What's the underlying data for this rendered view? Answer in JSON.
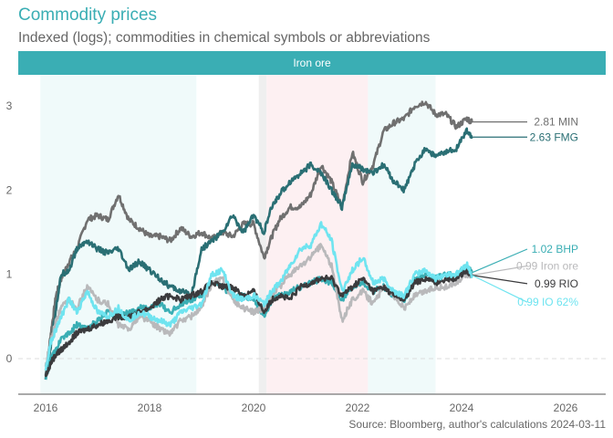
{
  "header": {
    "title": "Commodity prices",
    "subtitle": "Indexed (logs); commodities in chemical symbols or abbreviations",
    "facet_label": "Iron ore"
  },
  "footer": {
    "source": "Source: Bloomberg, author's calculations 2024-03-11"
  },
  "chart_data": {
    "type": "line",
    "title": "Commodity prices",
    "subtitle": "Indexed (logs); commodities in chemical symbols or abbreviations",
    "facet": "Iron ore",
    "xlabel": "",
    "ylabel": "",
    "xlim": [
      2015.5,
      2026.8
    ],
    "ylim": [
      -0.42,
      3.35
    ],
    "x_ticks": [
      2016,
      2018,
      2020,
      2022,
      2024,
      2026
    ],
    "x_tick_labels": [
      "2016",
      "2018",
      "2020",
      "2022",
      "2024",
      "2026"
    ],
    "y_ticks": [
      0,
      1,
      2,
      3
    ],
    "y_tick_labels": [
      "0",
      "1",
      "2",
      "3"
    ],
    "reference_line": {
      "y": 0,
      "style": "dashed"
    },
    "shaded_periods": [
      {
        "start": 2015.9,
        "end": 2018.9,
        "color": "#f0fafa"
      },
      {
        "start": 2020.1,
        "end": 2020.25,
        "color": "#efefef"
      },
      {
        "start": 2020.25,
        "end": 2022.2,
        "color": "#fdf0f2"
      },
      {
        "start": 2022.2,
        "end": 2023.5,
        "color": "#f0fafa"
      }
    ],
    "series": [
      {
        "name": "MIN",
        "color": "#707070",
        "end_value": 2.81,
        "end_label": "2.81 MIN",
        "label_y": 2.81,
        "x": [
          2016.0,
          2016.1,
          2016.2,
          2016.3,
          2016.45,
          2016.6,
          2016.8,
          2017.0,
          2017.2,
          2017.4,
          2017.6,
          2017.8,
          2018.0,
          2018.2,
          2018.4,
          2018.6,
          2018.8,
          2019.0,
          2019.2,
          2019.4,
          2019.6,
          2019.8,
          2020.0,
          2020.2,
          2020.35,
          2020.5,
          2020.7,
          2020.9,
          2021.1,
          2021.3,
          2021.5,
          2021.7,
          2021.9,
          2022.1,
          2022.3,
          2022.5,
          2022.7,
          2022.9,
          2023.1,
          2023.3,
          2023.5,
          2023.7,
          2023.9,
          2024.1,
          2024.2
        ],
        "y": [
          -0.2,
          0.3,
          0.75,
          0.95,
          1.15,
          1.3,
          1.65,
          1.7,
          1.65,
          1.95,
          1.65,
          1.55,
          1.45,
          1.45,
          1.4,
          1.55,
          1.45,
          1.5,
          1.42,
          1.5,
          1.45,
          1.6,
          1.6,
          1.2,
          1.45,
          1.65,
          1.8,
          1.8,
          1.95,
          2.3,
          2.1,
          1.8,
          2.45,
          2.1,
          2.3,
          2.7,
          2.8,
          2.85,
          3.0,
          3.05,
          2.9,
          2.9,
          2.75,
          2.85,
          2.81
        ]
      },
      {
        "name": "FMG",
        "color": "#2a6f74",
        "end_value": 2.63,
        "end_label": "2.63 FMG",
        "label_y": 2.63,
        "x": [
          2016.0,
          2016.1,
          2016.2,
          2016.3,
          2016.45,
          2016.6,
          2016.8,
          2017.0,
          2017.2,
          2017.4,
          2017.6,
          2017.8,
          2018.0,
          2018.2,
          2018.4,
          2018.6,
          2018.8,
          2019.0,
          2019.2,
          2019.4,
          2019.6,
          2019.8,
          2020.0,
          2020.2,
          2020.35,
          2020.5,
          2020.7,
          2020.9,
          2021.1,
          2021.3,
          2021.5,
          2021.7,
          2021.9,
          2022.1,
          2022.3,
          2022.5,
          2022.7,
          2022.9,
          2023.1,
          2023.3,
          2023.5,
          2023.7,
          2023.9,
          2024.1,
          2024.2
        ],
        "y": [
          -0.25,
          0.15,
          0.6,
          1.0,
          1.05,
          1.3,
          1.4,
          1.3,
          1.25,
          1.3,
          1.05,
          1.15,
          1.05,
          0.95,
          0.85,
          0.8,
          0.75,
          1.3,
          1.4,
          1.5,
          1.7,
          1.5,
          1.7,
          1.5,
          1.8,
          1.95,
          2.1,
          2.2,
          2.3,
          2.2,
          2.0,
          1.8,
          2.3,
          2.25,
          2.2,
          2.3,
          2.1,
          2.0,
          2.3,
          2.5,
          2.4,
          2.45,
          2.5,
          2.7,
          2.63
        ]
      },
      {
        "name": "BHP",
        "color": "#3aaeb4",
        "end_value": 1.02,
        "end_label": "1.02 BHP",
        "label_y": 1.3,
        "x": [
          2016.0,
          2016.1,
          2016.2,
          2016.3,
          2016.45,
          2016.6,
          2016.8,
          2017.0,
          2017.2,
          2017.4,
          2017.6,
          2017.8,
          2018.0,
          2018.2,
          2018.4,
          2018.6,
          2018.8,
          2019.0,
          2019.2,
          2019.4,
          2019.6,
          2019.8,
          2020.0,
          2020.2,
          2020.35,
          2020.5,
          2020.7,
          2020.9,
          2021.1,
          2021.3,
          2021.5,
          2021.7,
          2021.9,
          2022.1,
          2022.3,
          2022.5,
          2022.7,
          2022.9,
          2023.1,
          2023.3,
          2023.5,
          2023.7,
          2023.9,
          2024.1,
          2024.2
        ],
        "y": [
          -0.25,
          0.0,
          0.1,
          0.25,
          0.3,
          0.4,
          0.35,
          0.45,
          0.55,
          0.5,
          0.55,
          0.6,
          0.6,
          0.65,
          0.55,
          0.65,
          0.7,
          0.75,
          0.9,
          0.85,
          0.75,
          0.75,
          0.7,
          0.5,
          0.7,
          0.75,
          0.8,
          0.85,
          0.9,
          0.95,
          0.9,
          0.7,
          0.85,
          0.9,
          0.8,
          0.85,
          0.75,
          0.7,
          0.95,
          1.0,
          0.95,
          1.0,
          1.0,
          1.1,
          1.02
        ]
      },
      {
        "name": "Iron ore",
        "color": "#b9b9bb",
        "end_value": 0.99,
        "end_label": "0.99 Iron ore",
        "label_y": 1.1,
        "x": [
          2016.0,
          2016.1,
          2016.2,
          2016.3,
          2016.45,
          2016.6,
          2016.8,
          2017.0,
          2017.2,
          2017.4,
          2017.6,
          2017.8,
          2018.0,
          2018.2,
          2018.4,
          2018.6,
          2018.8,
          2019.0,
          2019.2,
          2019.4,
          2019.6,
          2019.8,
          2020.0,
          2020.2,
          2020.35,
          2020.5,
          2020.7,
          2020.9,
          2021.1,
          2021.3,
          2021.5,
          2021.7,
          2021.9,
          2022.1,
          2022.3,
          2022.5,
          2022.7,
          2022.9,
          2023.1,
          2023.3,
          2023.5,
          2023.7,
          2023.9,
          2024.1,
          2024.2
        ],
        "y": [
          -0.1,
          0.2,
          0.45,
          0.6,
          0.7,
          0.6,
          0.85,
          0.7,
          0.65,
          0.4,
          0.35,
          0.5,
          0.45,
          0.35,
          0.3,
          0.45,
          0.5,
          0.6,
          0.9,
          0.95,
          0.7,
          0.6,
          0.55,
          0.6,
          0.75,
          0.85,
          1.0,
          1.1,
          1.2,
          1.35,
          1.1,
          0.45,
          0.7,
          0.8,
          0.65,
          0.85,
          0.75,
          0.6,
          0.75,
          0.8,
          0.85,
          0.85,
          0.9,
          1.0,
          0.99
        ]
      },
      {
        "name": "RIO",
        "color": "#3b3b3d",
        "end_value": 0.99,
        "end_label": "0.99 RIO",
        "label_y": 0.89,
        "x": [
          2016.0,
          2016.1,
          2016.2,
          2016.3,
          2016.45,
          2016.6,
          2016.8,
          2017.0,
          2017.2,
          2017.4,
          2017.6,
          2017.8,
          2018.0,
          2018.2,
          2018.4,
          2018.6,
          2018.8,
          2019.0,
          2019.2,
          2019.4,
          2019.6,
          2019.8,
          2020.0,
          2020.2,
          2020.35,
          2020.5,
          2020.7,
          2020.9,
          2021.1,
          2021.3,
          2021.5,
          2021.7,
          2021.9,
          2022.1,
          2022.3,
          2022.5,
          2022.7,
          2022.9,
          2023.1,
          2023.3,
          2023.5,
          2023.7,
          2023.9,
          2024.1,
          2024.2
        ],
        "y": [
          -0.2,
          -0.05,
          0.05,
          0.1,
          0.2,
          0.3,
          0.35,
          0.4,
          0.45,
          0.5,
          0.5,
          0.55,
          0.6,
          0.7,
          0.75,
          0.7,
          0.75,
          0.8,
          0.9,
          0.85,
          0.85,
          0.75,
          0.8,
          0.55,
          0.7,
          0.75,
          0.7,
          0.85,
          0.9,
          0.95,
          0.95,
          0.75,
          0.85,
          0.95,
          0.8,
          0.85,
          0.75,
          0.7,
          0.9,
          0.95,
          0.9,
          0.95,
          0.95,
          1.05,
          0.99
        ]
      },
      {
        "name": "IO 62%",
        "color": "#6fe4f0",
        "end_value": 0.99,
        "end_label": "0.99 IO 62%",
        "label_y": 0.67,
        "x": [
          2016.0,
          2016.1,
          2016.2,
          2016.3,
          2016.45,
          2016.6,
          2016.8,
          2017.0,
          2017.2,
          2017.4,
          2017.6,
          2017.8,
          2018.0,
          2018.2,
          2018.4,
          2018.6,
          2018.8,
          2019.0,
          2019.2,
          2019.4,
          2019.6,
          2019.8,
          2020.0,
          2020.2,
          2020.35,
          2020.5,
          2020.7,
          2020.9,
          2021.1,
          2021.3,
          2021.5,
          2021.7,
          2021.9,
          2022.1,
          2022.3,
          2022.5,
          2022.7,
          2022.9,
          2023.1,
          2023.3,
          2023.5,
          2023.7,
          2023.9,
          2024.1,
          2024.2
        ],
        "y": [
          -0.15,
          0.2,
          0.35,
          0.5,
          0.7,
          0.55,
          0.8,
          0.55,
          0.5,
          0.6,
          0.45,
          0.55,
          0.5,
          0.45,
          0.4,
          0.55,
          0.6,
          0.65,
          1.0,
          1.05,
          0.75,
          0.7,
          0.75,
          0.65,
          0.8,
          0.9,
          1.1,
          1.3,
          1.35,
          1.6,
          1.4,
          0.8,
          1.05,
          1.2,
          0.9,
          0.95,
          0.8,
          0.75,
          1.0,
          1.05,
          0.95,
          1.0,
          1.0,
          1.12,
          0.99
        ]
      }
    ]
  }
}
